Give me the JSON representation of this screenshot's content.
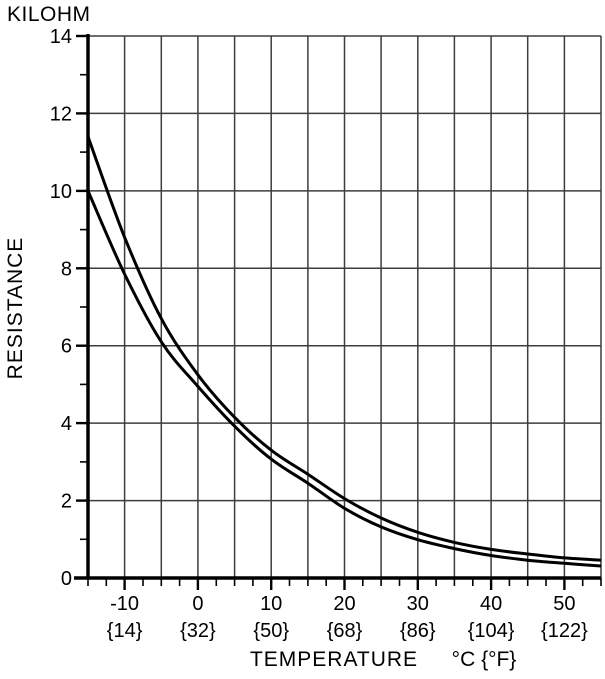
{
  "chart": {
    "y_axis_unit_title": "KILOHM",
    "y_axis_label": "RESISTANCE",
    "x_axis_title": "TEMPERATURE",
    "x_axis_unit": "°C {°F}"
  },
  "chart_data": {
    "type": "line",
    "title": "",
    "xlabel": "TEMPERATURE °C {°F}",
    "ylabel": "RESISTANCE KILOHM",
    "xlim": [
      -15,
      55
    ],
    "ylim": [
      0,
      14
    ],
    "grid": true,
    "x_grid_step": 5,
    "y_grid_step": 2,
    "x_minor_tick_step": 2.5,
    "y_minor_tick_step": 1,
    "legend": "none",
    "x": [
      -15,
      -10,
      -5,
      0,
      5,
      10,
      15,
      20,
      25,
      30,
      35,
      40,
      45,
      50,
      55
    ],
    "series": [
      {
        "name": "upper-tolerance-curve",
        "values": [
          11.4,
          8.8,
          6.7,
          5.25,
          4.15,
          3.3,
          2.68,
          2.05,
          1.55,
          1.18,
          0.92,
          0.74,
          0.62,
          0.52,
          0.46
        ]
      },
      {
        "name": "lower-tolerance-curve",
        "values": [
          10.0,
          7.85,
          6.1,
          4.95,
          3.92,
          3.07,
          2.45,
          1.8,
          1.32,
          0.99,
          0.76,
          0.58,
          0.46,
          0.38,
          0.31
        ]
      }
    ],
    "x_major_ticks": [
      {
        "value": -10,
        "label_c": "-10",
        "label_f": "{14}"
      },
      {
        "value": 0,
        "label_c": "0",
        "label_f": "{32}"
      },
      {
        "value": 10,
        "label_c": "10",
        "label_f": "{50}"
      },
      {
        "value": 20,
        "label_c": "20",
        "label_f": "{68}"
      },
      {
        "value": 30,
        "label_c": "30",
        "label_f": "{86}"
      },
      {
        "value": 40,
        "label_c": "40",
        "label_f": "{104}"
      },
      {
        "value": 50,
        "label_c": "50",
        "label_f": "{122}"
      }
    ],
    "y_major_ticks": [
      {
        "value": 0,
        "label": "0"
      },
      {
        "value": 2,
        "label": "2"
      },
      {
        "value": 4,
        "label": "4"
      },
      {
        "value": 6,
        "label": "6"
      },
      {
        "value": 8,
        "label": "8"
      },
      {
        "value": 10,
        "label": "10"
      },
      {
        "value": 12,
        "label": "12"
      },
      {
        "value": 14,
        "label": "14"
      }
    ],
    "colors": {
      "curve": "#000000",
      "axis": "#000000",
      "grid": "#3d3d3d",
      "text": "#000000",
      "background": "#ffffff"
    }
  }
}
